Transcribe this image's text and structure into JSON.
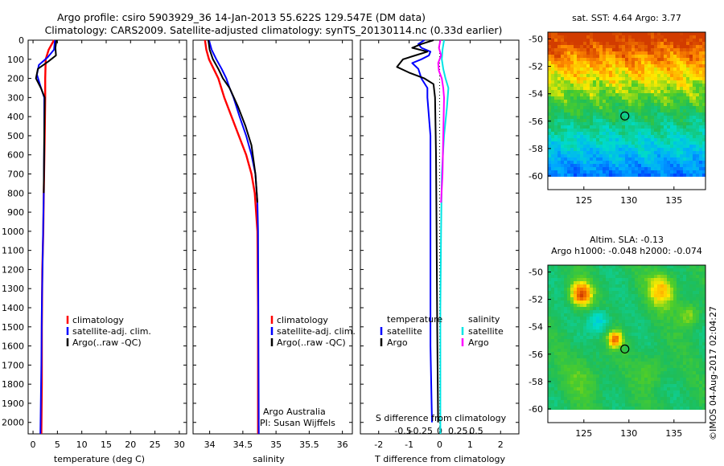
{
  "header": {
    "title_line1": "Argo profile: csiro 5903929_36 14-Jan-2013 55.622S 129.547E (DM data)",
    "title_line2": "Climatology: CARS2009. Satellite-adjusted climatology: synTS_20130114.nc (0.33d earlier)"
  },
  "colors": {
    "climatology": "#ff0000",
    "satellite": "#0000ff",
    "argo": "#000000",
    "sal_satellite": "#00e5e5",
    "sal_argo": "#ff00ff"
  },
  "chart_data": [
    {
      "id": "temperature",
      "type": "line",
      "xlabel": "temperature (deg C)",
      "xlim": [
        -1,
        31.5
      ],
      "xticks": [
        0,
        5,
        10,
        15,
        20,
        25,
        30
      ],
      "ylim": [
        2060,
        0
      ],
      "yticks": [
        0,
        100,
        200,
        300,
        400,
        500,
        600,
        700,
        800,
        900,
        1000,
        1100,
        1200,
        1300,
        1400,
        1500,
        1600,
        1700,
        1800,
        1900,
        2000
      ],
      "legend": [
        "climatology",
        "satellite-adj. clim.",
        "Argo(..raw -QC)"
      ],
      "series": [
        {
          "name": "climatology",
          "color": "#ff0000",
          "x": [
            4.3,
            3.2,
            2.6,
            2.5,
            2.5,
            2.4,
            2.2,
            2.1,
            1.9,
            1.8,
            1.8,
            1.7
          ],
          "y": [
            0,
            50,
            100,
            200,
            300,
            500,
            800,
            1000,
            1200,
            1500,
            1800,
            2060
          ]
        },
        {
          "name": "satellite-adj. clim.",
          "color": "#0000ff",
          "x": [
            4.5,
            4.3,
            3.0,
            1.2,
            0.8,
            1.5,
            2.3,
            2.3,
            2.2,
            2.0,
            1.8,
            1.7,
            1.5
          ],
          "y": [
            0,
            50,
            90,
            130,
            180,
            240,
            300,
            500,
            800,
            1100,
            1400,
            1700,
            2060
          ]
        },
        {
          "name": "Argo(..raw -QC)",
          "color": "#000000",
          "x": [
            4.8,
            4.6,
            4.7,
            3.2,
            1.0,
            0.6,
            1.6,
            2.4,
            2.3,
            2.2
          ],
          "y": [
            0,
            40,
            80,
            110,
            150,
            200,
            250,
            300,
            500,
            800
          ]
        }
      ]
    },
    {
      "id": "salinity",
      "type": "line",
      "xlabel": "salinity",
      "xlim": [
        33.75,
        36.15
      ],
      "xticks": [
        34,
        34.5,
        35,
        35.5,
        36
      ],
      "xtick_labels": [
        "34",
        "34.5",
        "35",
        "35.5",
        "36"
      ],
      "ylim": [
        2060,
        0
      ],
      "legend": [
        "climatology",
        "satellite-adj. clim.",
        "Argo(..raw -QC)"
      ],
      "annotation": [
        "Argo Australia",
        "PI: Susan Wijffels"
      ],
      "series": [
        {
          "name": "climatology",
          "color": "#ff0000",
          "x": [
            33.93,
            33.95,
            33.99,
            34.06,
            34.13,
            34.22,
            34.33,
            34.44,
            34.55,
            34.63,
            34.68,
            34.72,
            34.73,
            34.73
          ],
          "y": [
            0,
            50,
            100,
            150,
            200,
            300,
            400,
            500,
            600,
            700,
            800,
            1000,
            1400,
            2060
          ]
        },
        {
          "name": "satellite-adj. clim.",
          "color": "#0000ff",
          "x": [
            33.99,
            34.03,
            34.1,
            34.18,
            34.25,
            34.3,
            34.36,
            34.45,
            34.55,
            34.63,
            34.69,
            34.72,
            34.73,
            34.74
          ],
          "y": [
            0,
            50,
            100,
            150,
            200,
            250,
            300,
            400,
            500,
            600,
            700,
            850,
            1000,
            2060
          ]
        },
        {
          "name": "Argo(..raw -QC)",
          "color": "#000000",
          "x": [
            33.98,
            34.0,
            34.05,
            34.13,
            34.2,
            34.3,
            34.43,
            34.54,
            34.63,
            34.69,
            34.72
          ],
          "y": [
            0,
            50,
            100,
            150,
            200,
            250,
            350,
            450,
            550,
            700,
            850
          ]
        }
      ]
    },
    {
      "id": "difference",
      "type": "line",
      "xlabel": "T difference from climatology",
      "xlabel_top": "S difference from climatology",
      "xlim": [
        -2.6,
        2.6
      ],
      "xticks": [
        -2,
        -1,
        0,
        1,
        2
      ],
      "xticks_s": [
        -0.5,
        -0.25,
        0,
        0.25,
        0.5
      ],
      "xtick_s_labels": [
        "-0.5",
        "-0.25",
        "0",
        "0.25",
        "0.5"
      ],
      "ylim": [
        2060,
        0
      ],
      "legend_groups": [
        {
          "title": "temperature",
          "entries": [
            "satellite",
            "Argo"
          ]
        },
        {
          "title": "salinity",
          "entries": [
            "satellite",
            "Argo"
          ]
        }
      ],
      "series": [
        {
          "name": "T satellite",
          "color": "#0000ff",
          "x": [
            -0.5,
            -0.7,
            -0.6,
            -0.3,
            -0.35,
            -0.6,
            -0.9,
            -0.7,
            -0.6,
            -0.4,
            -0.4,
            -0.3,
            -0.3,
            -0.3,
            -0.3,
            -0.25
          ],
          "y": [
            0,
            20,
            40,
            60,
            80,
            100,
            120,
            150,
            200,
            250,
            300,
            500,
            800,
            1200,
            1600,
            2000
          ]
        },
        {
          "name": "T Argo",
          "color": "#000000",
          "x": [
            -0.2,
            -0.6,
            -0.9,
            -0.4,
            -0.8,
            -1.2,
            -1.4,
            -1.0,
            -0.5,
            -0.2,
            -0.15,
            -0.12,
            -0.1,
            -0.08,
            -0.05
          ],
          "y": [
            0,
            20,
            40,
            60,
            80,
            100,
            140,
            170,
            200,
            230,
            300,
            600,
            1000,
            1500,
            2000
          ]
        },
        {
          "name": "S satellite",
          "color": "#00e5e5",
          "x": [
            0.06,
            0.04,
            0.03,
            0.05,
            0.08,
            0.12,
            0.1,
            0.06,
            0.03,
            0.02,
            0.01,
            0.01,
            0.01
          ],
          "y": [
            0,
            50,
            100,
            150,
            200,
            250,
            350,
            500,
            700,
            1000,
            1400,
            1800,
            2060
          ]
        },
        {
          "name": "S Argo",
          "color": "#ff00ff",
          "x": [
            0.01,
            -0.01,
            0.02,
            -0.02,
            -0.01,
            0.03,
            0.05,
            0.06,
            0.05,
            0.04,
            0.02
          ],
          "y": [
            0,
            40,
            80,
            120,
            160,
            200,
            250,
            300,
            500,
            700,
            850
          ]
        }
      ]
    },
    {
      "id": "sst_map",
      "type": "heatmap",
      "title": "sat. SST: 4.64  Argo: 3.77",
      "xlim": [
        121,
        138.5
      ],
      "ylim": [
        -61,
        -49.5
      ],
      "xticks": [
        125,
        130,
        135
      ],
      "yticks": [
        -50,
        -52,
        -54,
        -56,
        -58,
        -60
      ],
      "marker": {
        "lon": 129.547,
        "lat": -55.622
      }
    },
    {
      "id": "sla_map",
      "type": "heatmap",
      "title": "Altim. SLA: -0.13",
      "subtitle": "Argo h1000: -0.048  h2000: -0.074",
      "xlim": [
        121,
        138.5
      ],
      "ylim": [
        -61,
        -49.5
      ],
      "xticks": [
        125,
        130,
        135
      ],
      "yticks": [
        -50,
        -52,
        -54,
        -56,
        -58,
        -60
      ],
      "marker": {
        "lon": 129.547,
        "lat": -55.622
      }
    }
  ],
  "footer": {
    "credit": "©IMOS 04-Aug-2017 02:04:27"
  }
}
